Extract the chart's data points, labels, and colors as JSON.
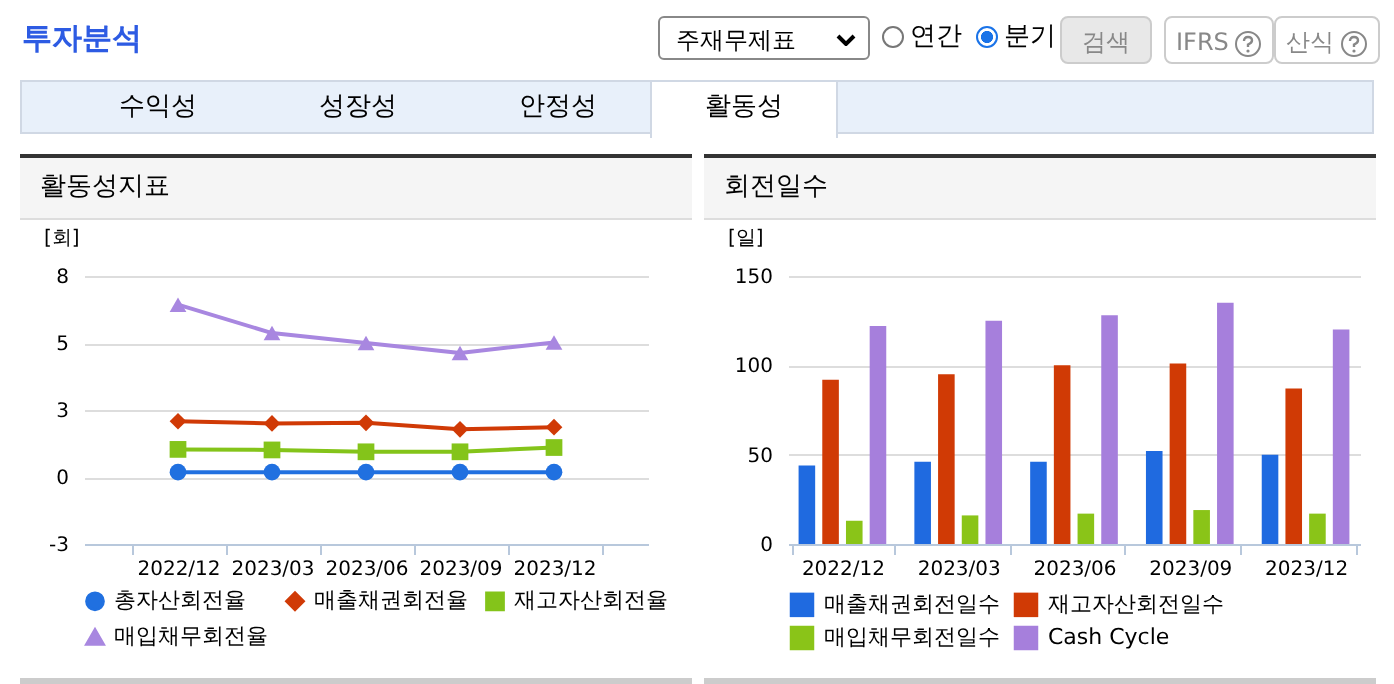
{
  "chart_data": [
    {
      "type": "other",
      "title": "투자분석",
      "categories": [
        "수익성",
        "성장성",
        "안정성",
        "활동성"
      ],
      "annotations": [
        "주재무제표",
        "연간",
        "분기",
        "검색",
        "IFRS",
        "산식"
      ]
    },
    {
      "type": "line",
      "title": "활동성지표",
      "ylabel": "[회]",
      "categories": [
        "2022/12",
        "2023/03",
        "2023/06",
        "2023/09",
        "2023/12"
      ],
      "series": [
        {
          "name": "총자산회전율",
          "color": "#2070e0",
          "marker": "circle",
          "values": [
            0.18,
            0.18,
            0.18,
            0.18,
            0.18
          ]
        },
        {
          "name": "매출채권회전율",
          "color": "#d03a06",
          "marker": "diamond",
          "values": [
            2.08,
            2.0,
            2.02,
            1.78,
            1.86
          ]
        },
        {
          "name": "재고자산회전율",
          "color": "#84c41a",
          "marker": "square",
          "values": [
            1.03,
            1.01,
            0.94,
            0.94,
            1.1
          ]
        },
        {
          "name": "매입채무회전율",
          "color": "#a887e0",
          "marker": "triangle",
          "values": [
            6.43,
            5.37,
            5.0,
            4.63,
            5.02
          ]
        }
      ],
      "ylim": [
        -2.5,
        7.5
      ],
      "yticks": [
        {
          "value": -2.5,
          "label": "-3"
        },
        0,
        {
          "value": 2.5,
          "label": "3"
        },
        5,
        {
          "value": 7.5,
          "label": "8"
        }
      ],
      "grid": "y",
      "legend": "bottom"
    },
    {
      "type": "bar",
      "title": "회전일수",
      "ylabel": "[일]",
      "categories": [
        "2022/12",
        "2023/03",
        "2023/06",
        "2023/09",
        "2023/12"
      ],
      "series": [
        {
          "name": "매출채권회전일수",
          "color": "#1f6ae0",
          "values": [
            44,
            46,
            46,
            52,
            50
          ]
        },
        {
          "name": "재고자산회전일수",
          "color": "#d03a05",
          "values": [
            92,
            95,
            100,
            101,
            87
          ]
        },
        {
          "name": "매입채무회전일수",
          "color": "#8ac418",
          "values": [
            13,
            16,
            17,
            19,
            17
          ]
        },
        {
          "name": "Cash Cycle",
          "color": "#a67fdc",
          "values": [
            122,
            125,
            128,
            135,
            120
          ]
        }
      ],
      "ylim": [
        0,
        150
      ],
      "yticks": [
        0,
        50,
        100,
        150
      ],
      "grid": "y",
      "legend": "bottom"
    }
  ]
}
